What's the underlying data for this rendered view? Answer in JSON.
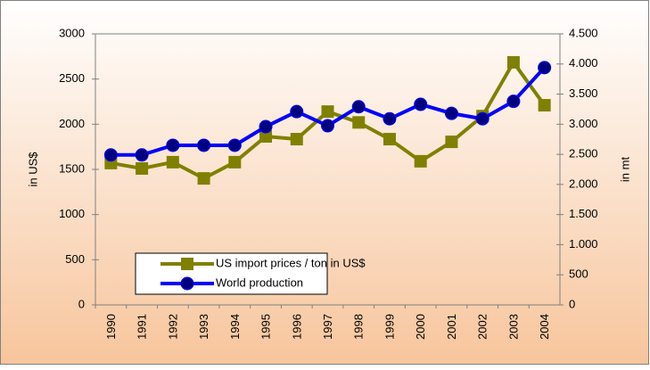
{
  "chart_data": {
    "type": "line",
    "categories": [
      "1990",
      "1991",
      "1992",
      "1993",
      "1994",
      "1995",
      "1996",
      "1997",
      "1998",
      "1999",
      "2000",
      "2001",
      "2002",
      "2003",
      "2004"
    ],
    "ylabel": "in US$",
    "y2label": "in mt",
    "ylim": [
      0,
      3000
    ],
    "yticks": [
      0,
      500,
      1000,
      1500,
      2000,
      2500,
      3000
    ],
    "y2lim": [
      0,
      4500
    ],
    "y2ticks": [
      0,
      500,
      {
        "value": 1000,
        "label": "1.000"
      },
      {
        "value": 1500,
        "label": "1.500"
      },
      {
        "value": 2000,
        "label": "2.000"
      },
      {
        "value": 2500,
        "label": "2.500"
      },
      {
        "value": 3000,
        "label": "3.000"
      },
      {
        "value": 3500,
        "label": "3.500"
      },
      {
        "value": 4000,
        "label": "4.000"
      },
      {
        "value": 4500,
        "label": "4.500"
      }
    ],
    "series": [
      {
        "name": "US import prices / ton in US$",
        "color": "#808000",
        "marker": "square",
        "values": [
          1570,
          1510,
          1580,
          1400,
          1580,
          1865,
          1835,
          2140,
          2020,
          1835,
          1590,
          1805,
          2090,
          2685,
          2210
        ]
      },
      {
        "name": "World production",
        "color": "#0000ff",
        "marker": "circle",
        "axis": "y2",
        "values": [
          2490,
          2490,
          2650,
          2650,
          2650,
          2960,
          3210,
          2975,
          3290,
          3090,
          3330,
          3180,
          3090,
          3380,
          3940
        ]
      }
    ]
  }
}
